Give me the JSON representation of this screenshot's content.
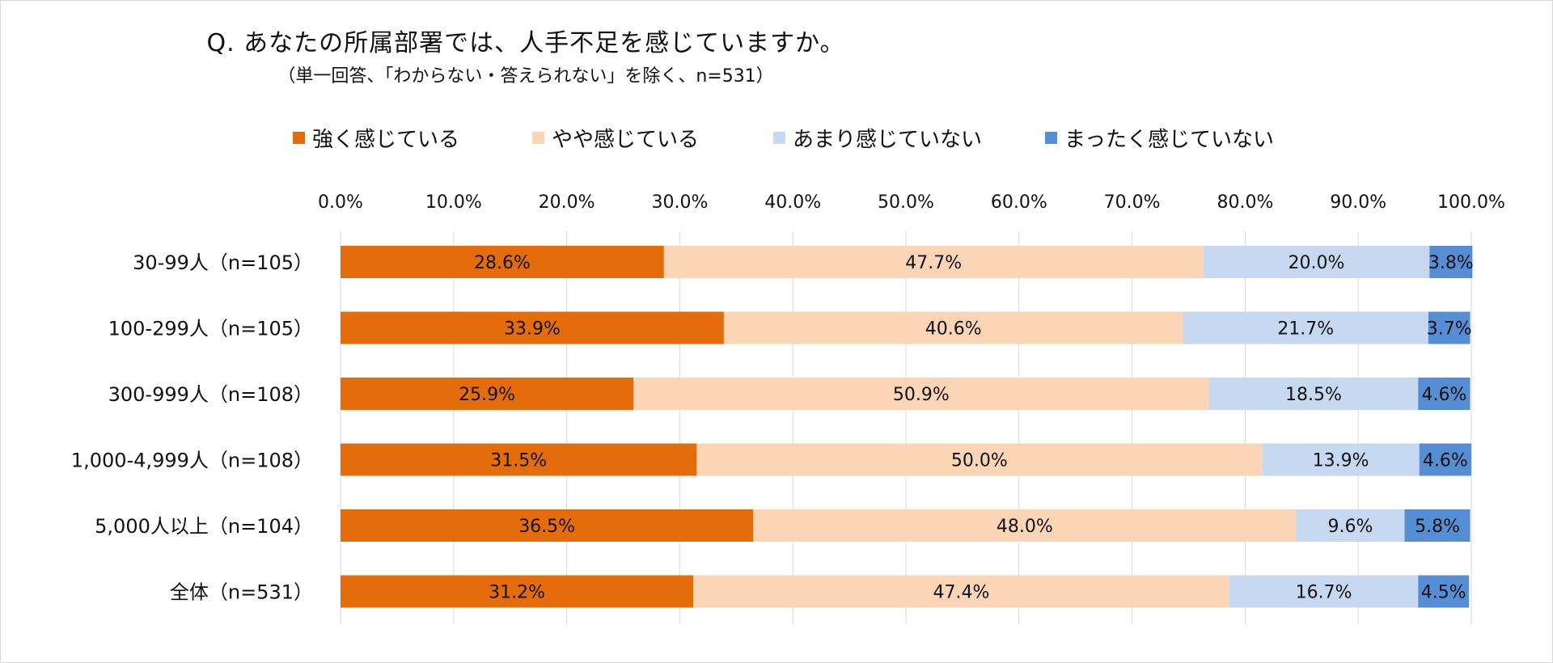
{
  "chart_data": {
    "type": "bar",
    "orientation": "horizontal",
    "stacked": true,
    "title": "Q. あなたの所属部署では、人手不足を感じていますか。",
    "subtitle": "（単一回答、「わからない・答えられない」を除く、n=531）",
    "categories": [
      "30-99人（n=105）",
      "100-299人（n=105）",
      "300-999人（n=108）",
      "1,000-4,999人（n=108）",
      "5,000人以上（n=104）",
      "全体（n=531）"
    ],
    "series": [
      {
        "name": "強く感じている",
        "color": "#E46C0A",
        "values": [
          28.6,
          33.9,
          25.9,
          31.5,
          36.5,
          31.2
        ],
        "labels": [
          "28.6%",
          "33.9%",
          "25.9%",
          "31.5%",
          "36.5%",
          "31.2%"
        ]
      },
      {
        "name": "やや感じている",
        "color": "#FBD5B5",
        "values": [
          47.7,
          40.6,
          50.9,
          50.0,
          48.0,
          47.4
        ],
        "labels": [
          "47.7%",
          "40.6%",
          "50.9%",
          "50.0%",
          "48.0%",
          "47.4%"
        ]
      },
      {
        "name": "あまり感じていない",
        "color": "#C6D9F1",
        "values": [
          20.0,
          21.7,
          18.5,
          13.9,
          9.6,
          16.7
        ],
        "labels": [
          "20.0%",
          "21.7%",
          "18.5%",
          "13.9%",
          "9.6%",
          "16.7%"
        ]
      },
      {
        "name": "まったく感じていない",
        "color": "#558ED5",
        "values": [
          3.8,
          3.7,
          4.6,
          4.6,
          5.8,
          4.5
        ],
        "labels": [
          "3.8%",
          "3.7%",
          "4.6%",
          "4.6%",
          "5.8%",
          "4.5%"
        ]
      }
    ],
    "xlim": [
      0,
      100
    ],
    "xticks": [
      "0.0%",
      "10.0%",
      "20.0%",
      "30.0%",
      "40.0%",
      "50.0%",
      "60.0%",
      "70.0%",
      "80.0%",
      "90.0%",
      "100.0%"
    ],
    "axis_position": "top",
    "grid": true,
    "legend_position": "top"
  }
}
